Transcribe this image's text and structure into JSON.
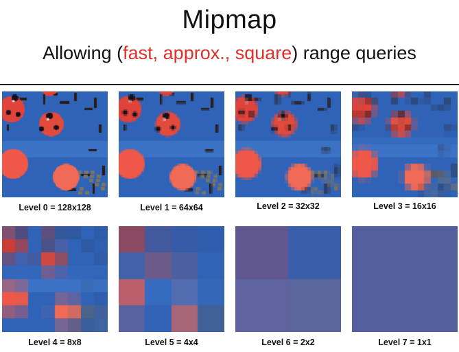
{
  "slide": {
    "title": "Mipmap",
    "subtitle": {
      "before": "Allowing (",
      "highlight": "fast, approx., square",
      "after": ") range queries"
    },
    "accent_color": "#e0302a"
  },
  "levels": [
    {
      "caption": "Level 0 = 128x128"
    },
    {
      "caption": "Level 1 = 64x64"
    },
    {
      "caption": "Level 2 = 32x32"
    },
    {
      "caption": "Level 3 = 16x16"
    },
    {
      "caption": "Level 4 = 8x8"
    },
    {
      "caption": "Level 5 = 4x4"
    },
    {
      "caption": "Level 6 = 2x2"
    },
    {
      "caption": "Level 7 = 1x1"
    }
  ]
}
